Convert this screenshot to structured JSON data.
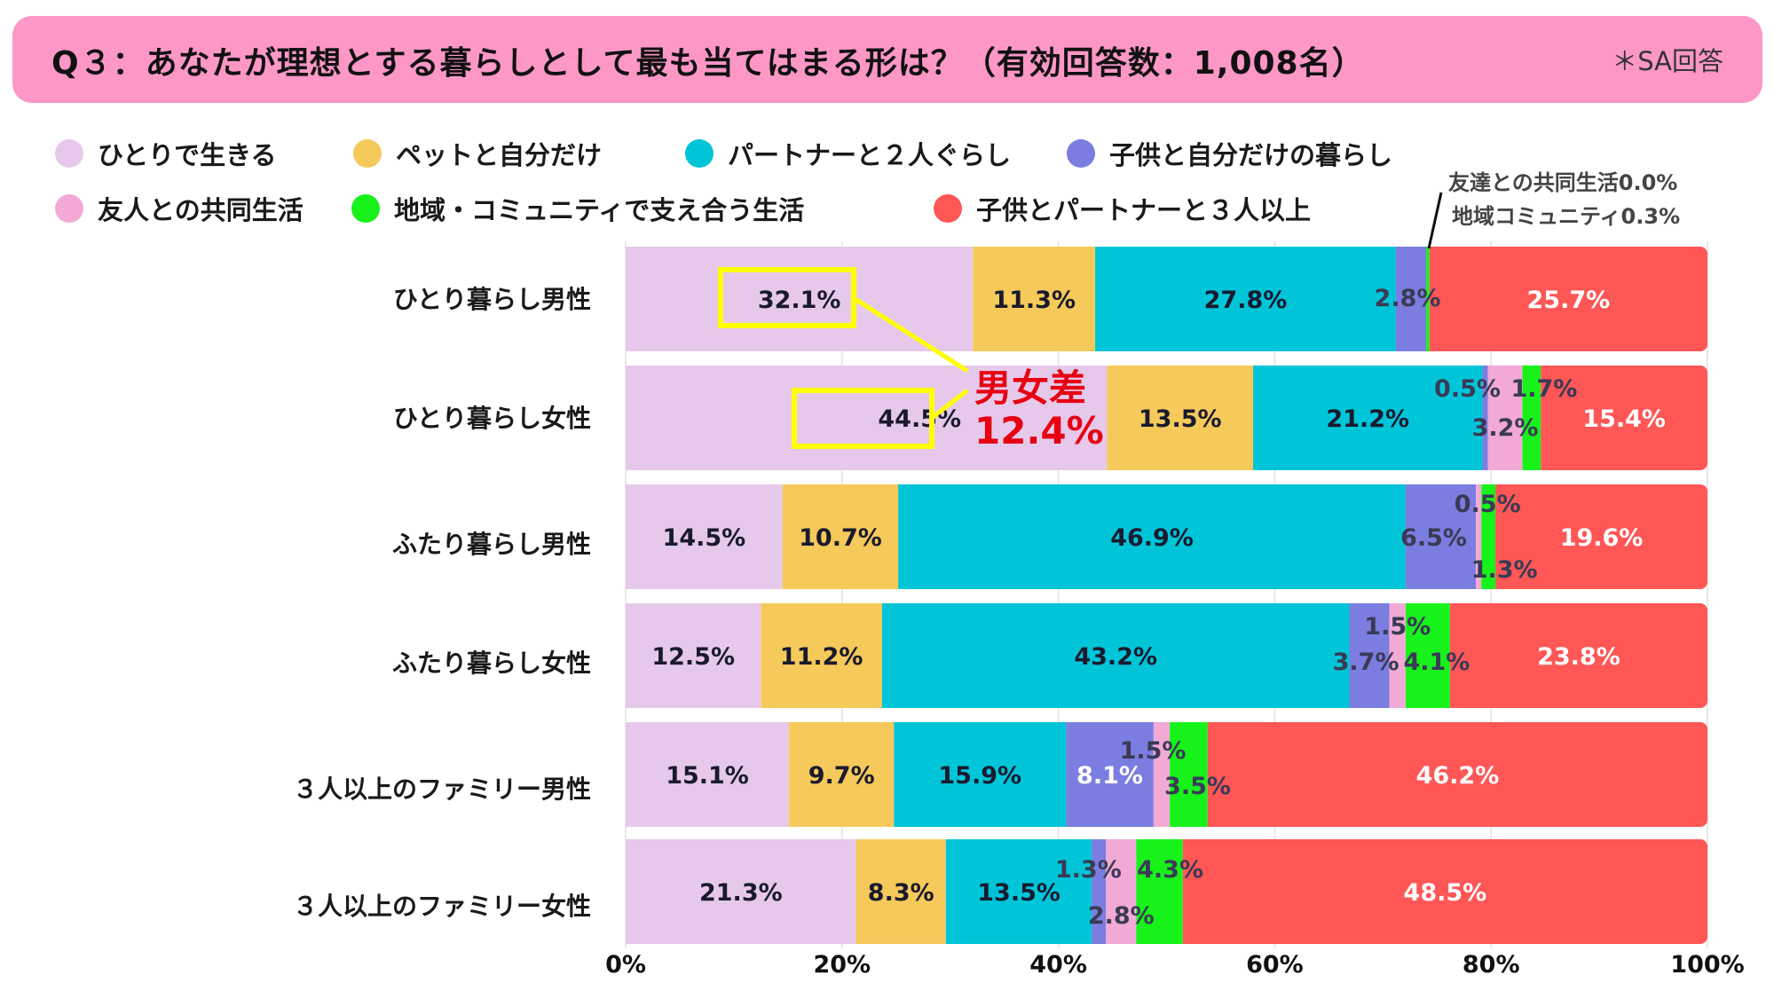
{
  "header": {
    "title": "Q３：あなたが理想とする暮らしとして最も当てはまる形は？（有効回答数：1,008名）",
    "note": "＊SA回答",
    "bg_color": "#fd97c6"
  },
  "annotation": {
    "line1": "友達との共同生活0.0%",
    "line2": "地域コミュニティ0.3%"
  },
  "callout": {
    "line1": "男女差",
    "line2": "12.4%",
    "box_color": "#ffff00",
    "text_color": "#e60012"
  },
  "chart_data": {
    "type": "bar",
    "orientation": "horizontal",
    "stacked": true,
    "title": "Q３：あなたが理想とする暮らしとして最も当てはまる形は？（有効回答数：1,008名）",
    "xlabel": "",
    "ylabel": "",
    "xlim": [
      0,
      100
    ],
    "x_ticks": [
      "0%",
      "20%",
      "40%",
      "60%",
      "80%",
      "100%"
    ],
    "x_tick_values": [
      0,
      20,
      40,
      60,
      80,
      100
    ],
    "grid": true,
    "legend_position": "top",
    "categories": [
      "ひとり暮らし男性",
      "ひとり暮らし女性",
      "ふたり暮らし男性",
      "ふたり暮らし女性",
      "３人以上のファミリー男性",
      "３人以上のファミリー女性"
    ],
    "series": [
      {
        "name": "ひとりで生きる",
        "color": "#e6c9ea",
        "values": [
          32.1,
          44.5,
          14.5,
          12.5,
          15.1,
          21.3
        ],
        "labels": [
          "32.1%",
          "44.5%",
          "14.5%",
          "12.5%",
          "15.1%",
          "21.3%"
        ]
      },
      {
        "name": "ペットと自分だけ",
        "color": "#f5c95a",
        "values": [
          11.3,
          13.5,
          10.7,
          11.2,
          9.7,
          8.3
        ],
        "labels": [
          "11.3%",
          "13.5%",
          "10.7%",
          "11.2%",
          "9.7%",
          "8.3%"
        ]
      },
      {
        "name": "パートナーと２人ぐらし",
        "color": "#00c5d9",
        "values": [
          27.8,
          21.2,
          46.9,
          43.2,
          15.9,
          13.5
        ],
        "labels": [
          "27.8%",
          "21.2%",
          "46.9%",
          "43.2%",
          "15.9%",
          "13.5%"
        ]
      },
      {
        "name": "子供と自分だけの暮らし",
        "color": "#7b7de0",
        "values": [
          2.8,
          0.5,
          6.5,
          3.7,
          8.1,
          1.3
        ],
        "labels": [
          "2.8%",
          "0.5%",
          "6.5%",
          "3.7%",
          "8.1%",
          "1.3%"
        ]
      },
      {
        "name": "友人との共同生活",
        "color": "#f2a9d6",
        "values": [
          0.0,
          3.2,
          0.5,
          1.5,
          1.5,
          2.8
        ],
        "labels": [
          "",
          "3.2%",
          "0.5%",
          "1.5%",
          "1.5%",
          "2.8%"
        ]
      },
      {
        "name": "地域・コミュニティで支え合う生活",
        "color": "#17f21a",
        "values": [
          0.3,
          1.7,
          1.3,
          4.1,
          3.5,
          4.3
        ],
        "labels": [
          "",
          "1.7%",
          "1.3%",
          "4.1%",
          "3.5%",
          "4.3%"
        ]
      },
      {
        "name": "子供とパートナーと３人以上",
        "color": "#ff5656",
        "values": [
          25.7,
          15.4,
          19.6,
          23.8,
          46.2,
          48.5
        ],
        "labels": [
          "25.7%",
          "15.4%",
          "19.6%",
          "23.8%",
          "46.2%",
          "48.5%"
        ]
      }
    ]
  }
}
